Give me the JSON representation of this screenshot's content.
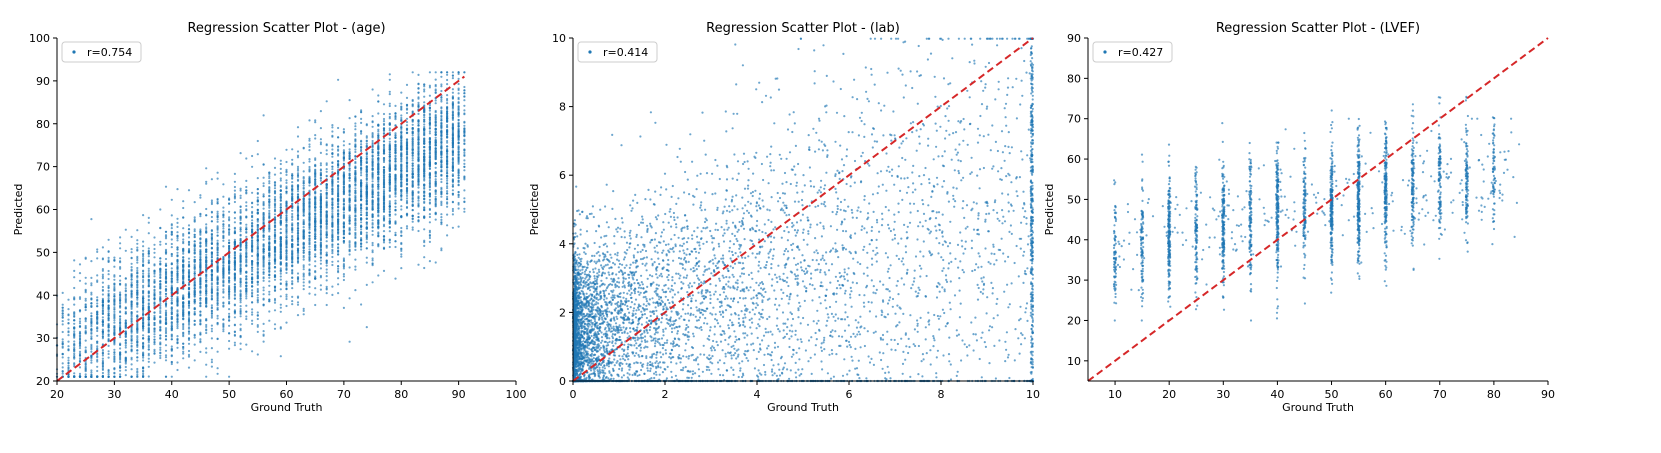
{
  "chart_data": [
    {
      "type": "scatter",
      "title": "Regression Scatter Plot - (age)",
      "xlabel": "Ground Truth",
      "ylabel": "Predicted",
      "xlim": [
        20,
        100
      ],
      "ylim": [
        20,
        100
      ],
      "xticks": [
        "20",
        "30",
        "40",
        "50",
        "60",
        "70",
        "80",
        "90",
        "100"
      ],
      "yticks": [
        "20",
        "30",
        "40",
        "50",
        "60",
        "70",
        "80",
        "90",
        "100"
      ],
      "legend": {
        "label": "r=0.754",
        "placement": "top-left"
      },
      "reference_line": {
        "from": [
          20,
          20
        ],
        "to": [
          91,
          91
        ],
        "style": "dashed",
        "color": "#d62728"
      },
      "r": 0.754,
      "grid": false,
      "point_color": "#1f77b4"
    },
    {
      "type": "scatter",
      "title": "Regression Scatter Plot - (lab)",
      "xlabel": "Ground Truth",
      "ylabel": "Predicted",
      "xlim": [
        0,
        10
      ],
      "ylim": [
        0,
        10
      ],
      "xticks": [
        "0",
        "2",
        "4",
        "6",
        "8",
        "10"
      ],
      "yticks": [
        "0",
        "2",
        "4",
        "6",
        "8",
        "10"
      ],
      "legend": {
        "label": "r=0.414",
        "placement": "top-left"
      },
      "reference_line": {
        "from": [
          0,
          0
        ],
        "to": [
          10,
          10
        ],
        "style": "dashed",
        "color": "#d62728"
      },
      "r": 0.414,
      "grid": false,
      "point_color": "#1f77b4"
    },
    {
      "type": "scatter",
      "title": "Regression Scatter Plot - (LVEF)",
      "xlabel": "Ground Truth",
      "ylabel": "Predicted",
      "xlim": [
        5,
        90
      ],
      "ylim": [
        5,
        90
      ],
      "xticks": [
        "10",
        "20",
        "30",
        "40",
        "50",
        "60",
        "70",
        "80",
        "90"
      ],
      "yticks": [
        "10",
        "20",
        "30",
        "40",
        "50",
        "60",
        "70",
        "80",
        "90"
      ],
      "legend": {
        "label": "r=0.427",
        "placement": "top-left"
      },
      "reference_line": {
        "from": [
          5,
          5
        ],
        "to": [
          90,
          90
        ],
        "style": "dashed",
        "color": "#d62728"
      },
      "r": 0.427,
      "grid": false,
      "point_color": "#1f77b4"
    }
  ]
}
